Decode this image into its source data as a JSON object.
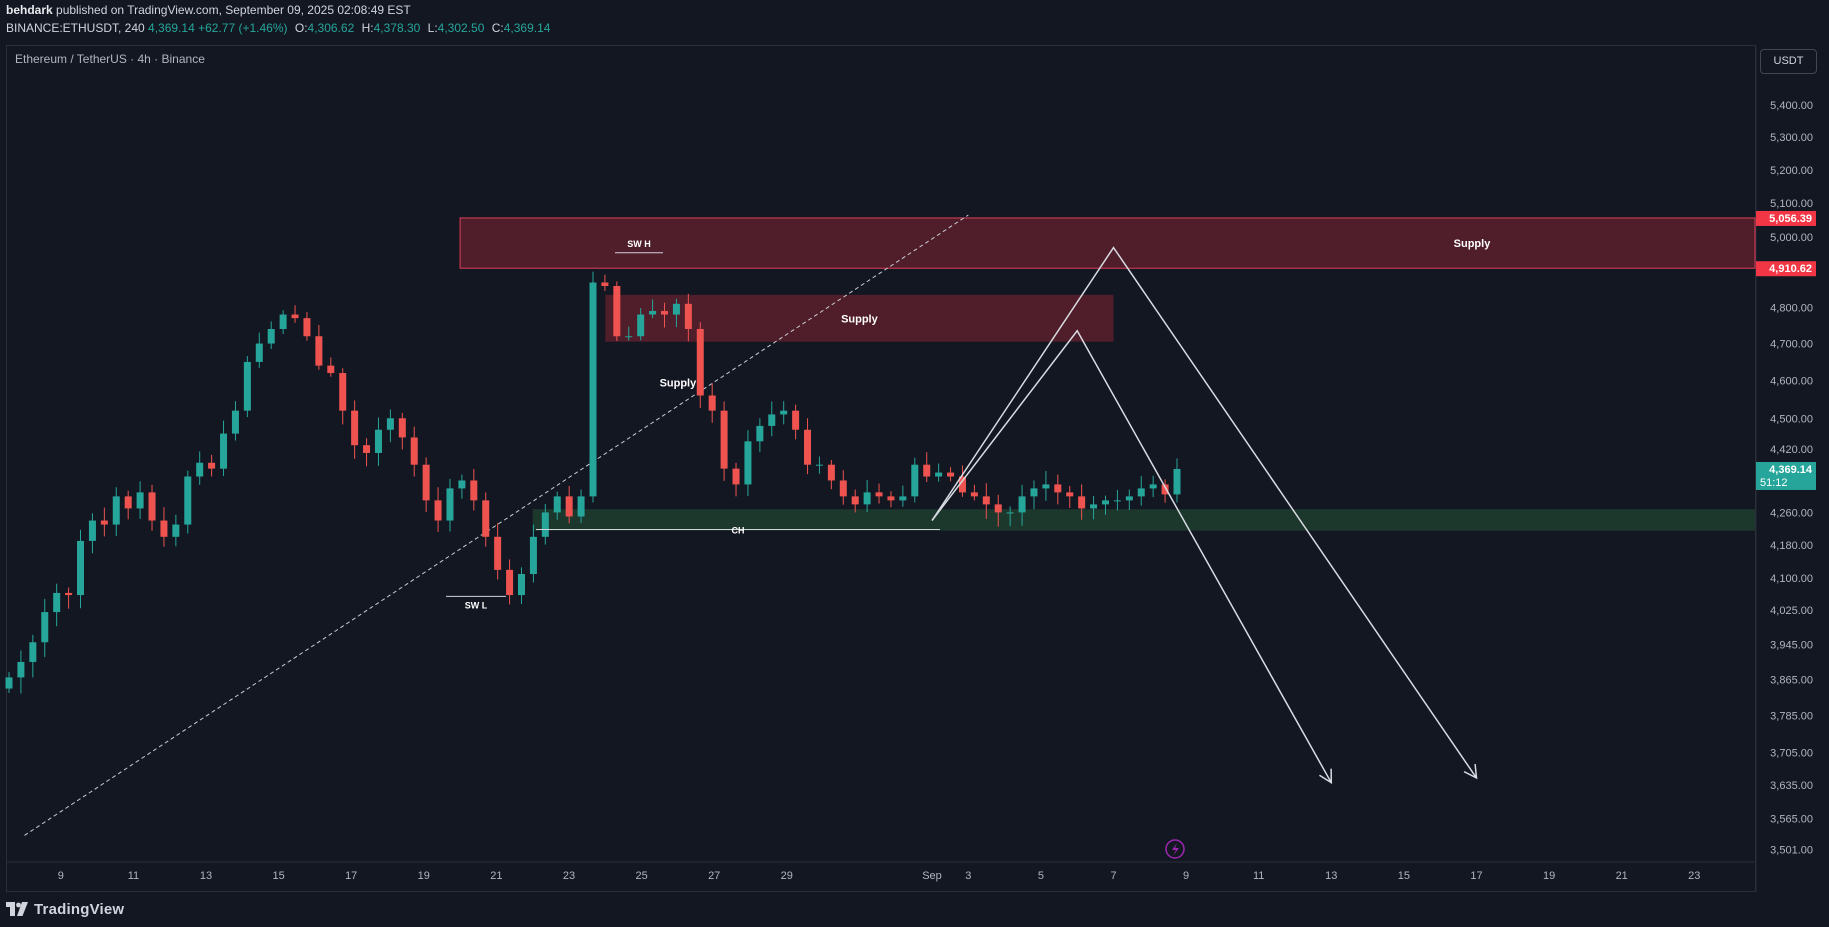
{
  "header": {
    "author": "behdark",
    "published_text": "published on TradingView.com, September 09, 2025 02:08:49 EST",
    "symbol": "BINANCE:ETHUSDT, 240",
    "last": "4,369.14",
    "change": "+62.77 (+1.46%)",
    "open_label": "O:",
    "open": "4,306.62",
    "high_label": "H:",
    "high": "4,378.30",
    "low_label": "L:",
    "low": "4,302.50",
    "close_label": "C:",
    "close": "4,369.14"
  },
  "chart_title": "Ethereum / TetherUS · 4h · Binance",
  "currency_button": "USDT",
  "footer": {
    "brand": "TradingView"
  },
  "colors": {
    "background": "#131722",
    "up": "#26a69a",
    "down": "#ef5350",
    "supply_zone": "#5c1f2b",
    "demand_zone": "#1e3b2e",
    "price_badge": "#26a69a",
    "level_badge": "#f23645"
  },
  "chart_data": {
    "type": "candlestick",
    "title": "Ethereum / TetherUS · 4h · Binance",
    "y_scale": "log",
    "ylim": [
      3480,
      5600
    ],
    "y_ticks": [
      "5,400.00",
      "5,300.00",
      "5,200.00",
      "5,100.00",
      "5,000.00",
      "4,800.00",
      "4,700.00",
      "4,600.00",
      "4,500.00",
      "4,420.00",
      "4,260.00",
      "4,180.00",
      "4,100.00",
      "4,025.00",
      "3,945.00",
      "3,865.00",
      "3,785.00",
      "3,705.00",
      "3,635.00",
      "3,565.00",
      "3,501.00"
    ],
    "x_ticks": [
      "9",
      "11",
      "13",
      "15",
      "17",
      "19",
      "21",
      "23",
      "25",
      "27",
      "29",
      "Sep",
      "3",
      "5",
      "7",
      "9",
      "11",
      "13",
      "15",
      "17",
      "19",
      "21",
      "23"
    ],
    "x_range_days": [
      "Aug 8",
      "Sep 24"
    ],
    "price_series_close": [
      3870,
      3905,
      3950,
      4020,
      4065,
      4060,
      4190,
      4240,
      4230,
      4300,
      4270,
      4310,
      4240,
      4200,
      4230,
      4350,
      4385,
      4370,
      4460,
      4520,
      4650,
      4700,
      4740,
      4780,
      4770,
      4720,
      4640,
      4620,
      4520,
      4430,
      4410,
      4470,
      4500,
      4450,
      4380,
      4290,
      4240,
      4320,
      4340,
      4290,
      4200,
      4120,
      4060,
      4110,
      4200,
      4260,
      4300,
      4250,
      4300,
      4870,
      4860,
      4720,
      4720,
      4780,
      4790,
      4780,
      4810,
      4740,
      4560,
      4520,
      4370,
      4330,
      4440,
      4480,
      4510,
      4520,
      4470,
      4380,
      4380,
      4340,
      4300,
      4280,
      4310,
      4300,
      4290,
      4300,
      4380,
      4350,
      4360,
      4350,
      4310,
      4300,
      4280,
      4260,
      4260,
      4300,
      4320,
      4330,
      4310,
      4300,
      4270,
      4280,
      4290,
      4290,
      4300,
      4320,
      4330,
      4305,
      4369.14
    ],
    "price_labels": {
      "current_price": "4,369.14",
      "countdown": "51:12",
      "zone_top": "5,056.39",
      "zone_bottom": "4,910.62"
    },
    "zones": [
      {
        "type": "supply",
        "label": "Supply",
        "from_date": "Aug 20",
        "to_date": "right-edge",
        "price_low": 4910.62,
        "price_high": 5056.39
      },
      {
        "type": "supply",
        "label": "Supply",
        "from_date": "Aug 24",
        "to_date": "Sep 14",
        "price_low": 4705,
        "price_high": 4835
      },
      {
        "type": "supply",
        "label": "Supply",
        "from_date": "Aug 25",
        "to_date": "Aug 27",
        "price_low": 4590,
        "price_high": 4600
      },
      {
        "type": "demand",
        "label": "",
        "from_date": "Aug 22",
        "to_date": "right-edge",
        "price_low": 4215,
        "price_high": 4268
      }
    ],
    "annotations": [
      {
        "label": "SW H",
        "date": "Aug 24",
        "price": 4955
      },
      {
        "label": "SW L",
        "date": "Aug 20",
        "price": 4057
      },
      {
        "label": "CH",
        "date": "Aug 26",
        "price": 4218
      }
    ],
    "projection_paths": [
      {
        "points": [
          [
            "Sep 9",
            4240
          ],
          [
            "Sep 13",
            4735
          ],
          [
            "Sep 20",
            3640
          ]
        ]
      },
      {
        "points": [
          [
            "Sep 9",
            4240
          ],
          [
            "Sep 14",
            4970
          ],
          [
            "Sep 24",
            3650
          ]
        ]
      }
    ],
    "trendline": {
      "style": "dashed",
      "from": [
        "Aug 8",
        3530
      ],
      "to": [
        "Sep 10",
        5065
      ]
    }
  }
}
